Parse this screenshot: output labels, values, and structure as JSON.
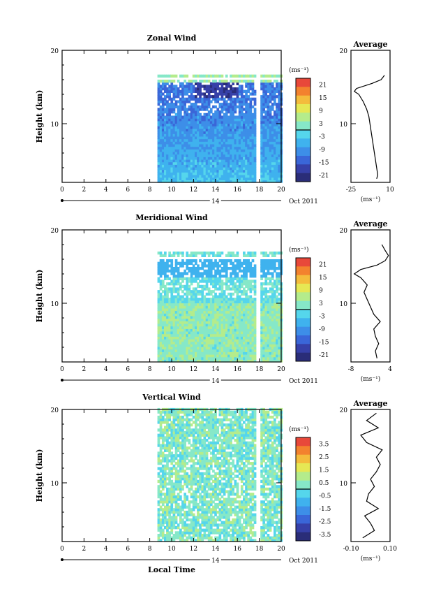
{
  "palette": [
    "#2a2d78",
    "#3640a8",
    "#3a66d8",
    "#3d8ee8",
    "#3fb2ee",
    "#55d6ec",
    "#86e8c8",
    "#b4ec8c",
    "#e6e854",
    "#f4bc3c",
    "#f3822e",
    "#e8483a"
  ],
  "time_axis": {
    "ticks": [
      "0",
      "2",
      "4",
      "6",
      "8",
      "10",
      "12",
      "14",
      "16",
      "18",
      "20"
    ],
    "day_label": "14",
    "month_label": "Oct 2011",
    "xlabel": "Local Time"
  },
  "chart_data": [
    {
      "type": "heatmap",
      "title": "Zonal Wind",
      "ylabel": "Height (km)",
      "xlim": [
        0,
        20
      ],
      "ylim": [
        2,
        20
      ],
      "yticks": [
        "10",
        "20"
      ],
      "data_start_hour": 8.7,
      "data_end_hour": 20,
      "gap_hour": 17.8,
      "data_top_km": 16.6,
      "unit": "(ms⁻¹)",
      "colorbar_ticks": [
        "21",
        "15",
        "9",
        "3",
        "-3",
        "-9",
        "-15",
        "-21"
      ],
      "colorbar_range": [
        -24,
        24
      ],
      "field": "zonal",
      "average": {
        "title": "Average",
        "xlabel": "(ms⁻¹)",
        "xticks": [
          "-25",
          "10"
        ],
        "xlim": [
          -25,
          10
        ],
        "profile": [
          [
            2.5,
            -2
          ],
          [
            3,
            -1
          ],
          [
            4,
            -2
          ],
          [
            5,
            -3
          ],
          [
            6,
            -4
          ],
          [
            7,
            -5
          ],
          [
            8,
            -6
          ],
          [
            9,
            -7
          ],
          [
            10,
            -8
          ],
          [
            11,
            -9
          ],
          [
            12,
            -11
          ],
          [
            13,
            -14
          ],
          [
            14,
            -18
          ],
          [
            14.4,
            -22
          ],
          [
            14.8,
            -20
          ],
          [
            15.5,
            -6
          ],
          [
            16,
            2
          ],
          [
            16.6,
            5
          ]
        ]
      }
    },
    {
      "type": "heatmap",
      "title": "Meridional Wind",
      "ylabel": "Height (km)",
      "xlim": [
        0,
        20
      ],
      "ylim": [
        2,
        20
      ],
      "yticks": [
        "10",
        "20"
      ],
      "data_start_hour": 8.7,
      "data_end_hour": 20,
      "gap_hour": 17.8,
      "data_top_km": 17,
      "unit": "(ms⁻¹)",
      "colorbar_ticks": [
        "21",
        "15",
        "9",
        "3",
        "-3",
        "-9",
        "-15",
        "-21"
      ],
      "colorbar_range": [
        -24,
        24
      ],
      "field": "meridional",
      "average": {
        "title": "Average",
        "xlabel": "(ms⁻¹)",
        "xticks": [
          "-8",
          "4"
        ],
        "xlim": [
          -8,
          4
        ],
        "profile": [
          [
            2.5,
            0
          ],
          [
            3.5,
            -0.5
          ],
          [
            4.5,
            0.5
          ],
          [
            5.5,
            -0.5
          ],
          [
            6.5,
            -1
          ],
          [
            7.5,
            1
          ],
          [
            8.5,
            -1
          ],
          [
            9.5,
            -2
          ],
          [
            10.5,
            -3
          ],
          [
            11.5,
            -4
          ],
          [
            12.5,
            -3
          ],
          [
            13.5,
            -5
          ],
          [
            14,
            -7
          ],
          [
            14.6,
            -5
          ],
          [
            15.2,
            0
          ],
          [
            15.8,
            2.5
          ],
          [
            16.5,
            3.5
          ],
          [
            17.2,
            2.5
          ],
          [
            18,
            1.5
          ]
        ]
      }
    },
    {
      "type": "heatmap",
      "title": "Vertical Wind",
      "ylabel": "Height (km)",
      "xlim": [
        0,
        20
      ],
      "ylim": [
        2,
        20
      ],
      "yticks": [
        "10",
        "20"
      ],
      "data_start_hour": 8.7,
      "data_end_hour": 20,
      "gap_hour": 17.8,
      "data_top_km": 20,
      "unit": "(ms⁻¹)",
      "colorbar_ticks": [
        "3.5",
        "2.5",
        "1.5",
        "0.5",
        "-0.5",
        "-1.5",
        "-2.5",
        "-3.5"
      ],
      "colorbar_range": [
        -4,
        4
      ],
      "field": "vertical",
      "average": {
        "title": "Average",
        "xlabel": "(ms⁻¹)",
        "xticks": [
          "-0.10",
          "0.10"
        ],
        "xlim": [
          -0.1,
          0.1
        ],
        "profile": [
          [
            2.5,
            -0.04
          ],
          [
            3.5,
            0.02
          ],
          [
            4.5,
            0.0
          ],
          [
            5.5,
            -0.03
          ],
          [
            6.5,
            0.04
          ],
          [
            7.5,
            -0.02
          ],
          [
            8.5,
            -0.01
          ],
          [
            9.5,
            0.02
          ],
          [
            10.5,
            0.0
          ],
          [
            11.5,
            0.03
          ],
          [
            12.5,
            0.05
          ],
          [
            13.5,
            0.03
          ],
          [
            14.5,
            0.06
          ],
          [
            15.5,
            -0.02
          ],
          [
            16.5,
            -0.05
          ],
          [
            17.5,
            0.04
          ],
          [
            18.5,
            -0.02
          ],
          [
            19.5,
            0.03
          ]
        ]
      }
    }
  ]
}
